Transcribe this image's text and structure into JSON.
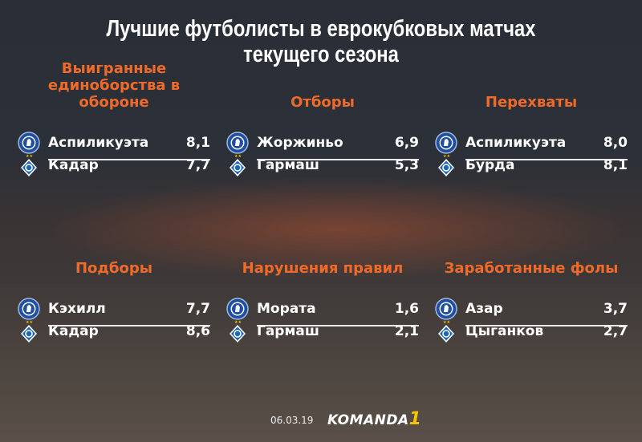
{
  "title_line1": "Лучшие футболисты в еврокубковых матчах",
  "title_line2": "текущего сезона",
  "categories": [
    {
      "heading": "Выигранные единоборства в обороне",
      "rows": [
        {
          "team": "chelsea",
          "player": "Аспиликуэта",
          "value": "8,1"
        },
        {
          "team": "dynamo-kyiv",
          "player": "Кадар",
          "value": "7,7"
        }
      ]
    },
    {
      "heading": "Отборы",
      "rows": [
        {
          "team": "chelsea",
          "player": "Жоржиньо",
          "value": "6,9"
        },
        {
          "team": "dynamo-kyiv",
          "player": "Гармаш",
          "value": "5,3"
        }
      ]
    },
    {
      "heading": "Перехваты",
      "rows": [
        {
          "team": "chelsea",
          "player": "Аспиликуэта",
          "value": "8,0"
        },
        {
          "team": "dynamo-kyiv",
          "player": "Бурда",
          "value": "8,1"
        }
      ]
    },
    {
      "heading": "Подборы",
      "rows": [
        {
          "team": "chelsea",
          "player": "Кэхилл",
          "value": "7,7"
        },
        {
          "team": "dynamo-kyiv",
          "player": "Кадар",
          "value": "8,6"
        }
      ]
    },
    {
      "heading": "Нарушения правил",
      "rows": [
        {
          "team": "chelsea",
          "player": "Мората",
          "value": "1,6"
        },
        {
          "team": "dynamo-kyiv",
          "player": "Гармаш",
          "value": "2,1"
        }
      ]
    },
    {
      "heading": "Заработанные фолы",
      "rows": [
        {
          "team": "chelsea",
          "player": "Азар",
          "value": "3,7"
        },
        {
          "team": "dynamo-kyiv",
          "player": "Цыганков",
          "value": "2,7"
        }
      ]
    }
  ],
  "footer": {
    "date": "06.03.19",
    "logo_text": "KOMANDA",
    "logo_suffix": "1"
  },
  "colors": {
    "heading": "#f06a2a",
    "chelsea": "#1e4fa0",
    "dynamo": "#1a66b8"
  }
}
